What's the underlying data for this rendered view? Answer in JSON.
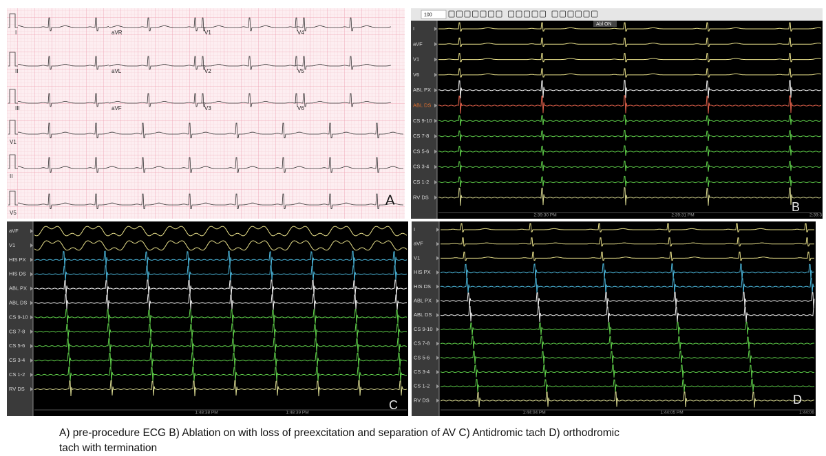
{
  "panel_a": {
    "label": "A",
    "leads": [
      [
        "I",
        "aVR",
        "V1",
        "V4"
      ],
      [
        "II",
        "aVL",
        "V2",
        "V5"
      ],
      [
        "III",
        "aVF",
        "V3",
        "V6"
      ]
    ],
    "rhythm_strips": [
      "V1",
      "II",
      "V5"
    ]
  },
  "panel_b": {
    "label": "B",
    "zoom": "100",
    "marker": "Abl ON",
    "channels": [
      {
        "name": "I",
        "color": "#e8e08a"
      },
      {
        "name": "aVF",
        "color": "#e8e08a"
      },
      {
        "name": "V1",
        "color": "#e8e08a"
      },
      {
        "name": "V6",
        "color": "#e8e08a"
      },
      {
        "name": "ABL PX",
        "color": "#f0f0f0"
      },
      {
        "name": "ABL DS",
        "color": "#e0604a"
      },
      {
        "name": "CS 9-10",
        "color": "#5fcf4a"
      },
      {
        "name": "CS 7-8",
        "color": "#5fcf4a"
      },
      {
        "name": "CS 5-6",
        "color": "#5fcf4a"
      },
      {
        "name": "CS 3-4",
        "color": "#5fcf4a"
      },
      {
        "name": "CS 1-2",
        "color": "#5fcf4a"
      },
      {
        "name": "RV DS",
        "color": "#d8d890"
      }
    ],
    "times": [
      "2:39:30 PM",
      "2:39:31 PM",
      "2:39:3"
    ]
  },
  "panel_c": {
    "label": "C",
    "channels": [
      {
        "name": "aVF",
        "color": "#e8e08a"
      },
      {
        "name": "V1",
        "color": "#e8e08a"
      },
      {
        "name": "HIS PX",
        "color": "#4ab4d8"
      },
      {
        "name": "HIS DS",
        "color": "#4ab4d8"
      },
      {
        "name": "ABL PX",
        "color": "#f0f0f0"
      },
      {
        "name": "ABL DS",
        "color": "#f0f0f0"
      },
      {
        "name": "CS 9-10",
        "color": "#5fcf4a"
      },
      {
        "name": "CS 7-8",
        "color": "#5fcf4a"
      },
      {
        "name": "CS 5-6",
        "color": "#5fcf4a"
      },
      {
        "name": "CS 3-4",
        "color": "#5fcf4a"
      },
      {
        "name": "CS 1-2",
        "color": "#5fcf4a"
      },
      {
        "name": "RV DS",
        "color": "#d8d890"
      }
    ],
    "times": [
      "1:48:38 PM",
      "1:48:39 PM"
    ]
  },
  "panel_d": {
    "label": "D",
    "channels": [
      {
        "name": "I",
        "color": "#e8e08a"
      },
      {
        "name": "aVF",
        "color": "#e8e08a"
      },
      {
        "name": "V1",
        "color": "#e8e08a"
      },
      {
        "name": "HIS PX",
        "color": "#4ab4d8"
      },
      {
        "name": "HIS DS",
        "color": "#4ab4d8"
      },
      {
        "name": "ABL PX",
        "color": "#f0f0f0"
      },
      {
        "name": "ABL DS",
        "color": "#f0f0f0"
      },
      {
        "name": "CS 9-10",
        "color": "#5fcf4a"
      },
      {
        "name": "CS 7-8",
        "color": "#5fcf4a"
      },
      {
        "name": "CS 5-6",
        "color": "#5fcf4a"
      },
      {
        "name": "CS 3-4",
        "color": "#5fcf4a"
      },
      {
        "name": "CS 1-2",
        "color": "#5fcf4a"
      },
      {
        "name": "RV DS",
        "color": "#d8d890"
      }
    ],
    "times": [
      "1:44:04 PM",
      "1:44:05 PM",
      "1:44:06"
    ]
  },
  "caption": [
    "A) pre-procedure ECG B) Ablation on with loss of preexcitation and separation of AV C) Antidromic tach D) orthodromic",
    "tach with termination"
  ]
}
